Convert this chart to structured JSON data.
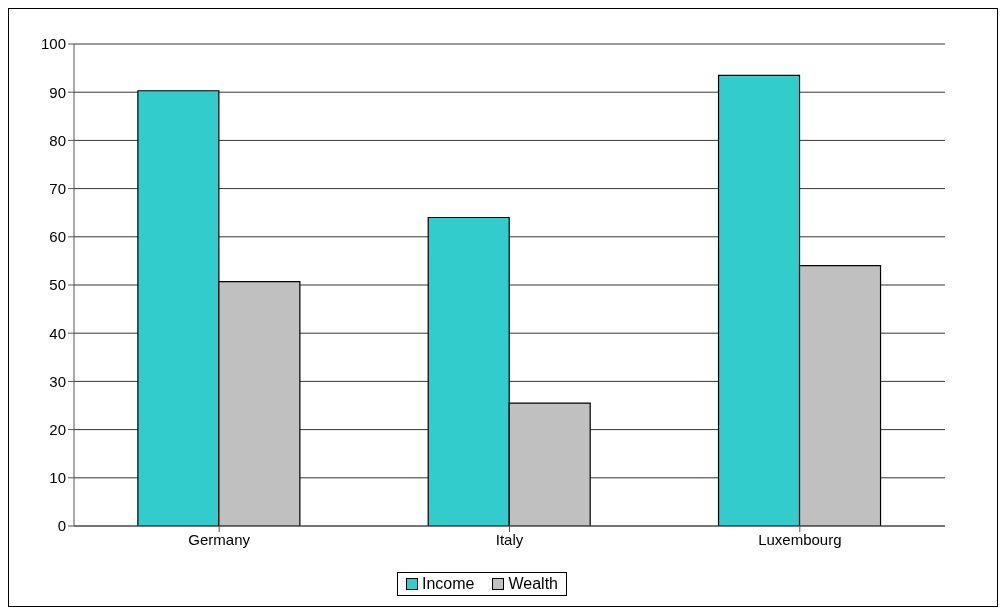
{
  "chart_data": {
    "type": "bar",
    "categories": [
      "Germany",
      "Italy",
      "Luxembourg"
    ],
    "series": [
      {
        "name": "Income",
        "color": "#33cccc",
        "values": [
          90.3,
          64.0,
          93.5
        ]
      },
      {
        "name": "Wealth",
        "color": "#c0c0c0",
        "values": [
          50.7,
          25.5,
          54.0
        ]
      }
    ],
    "ylim": [
      0,
      100
    ],
    "yticks": [
      0,
      10,
      20,
      30,
      40,
      50,
      60,
      70,
      80,
      90,
      100
    ],
    "grid": "y",
    "legend": "bottom"
  }
}
